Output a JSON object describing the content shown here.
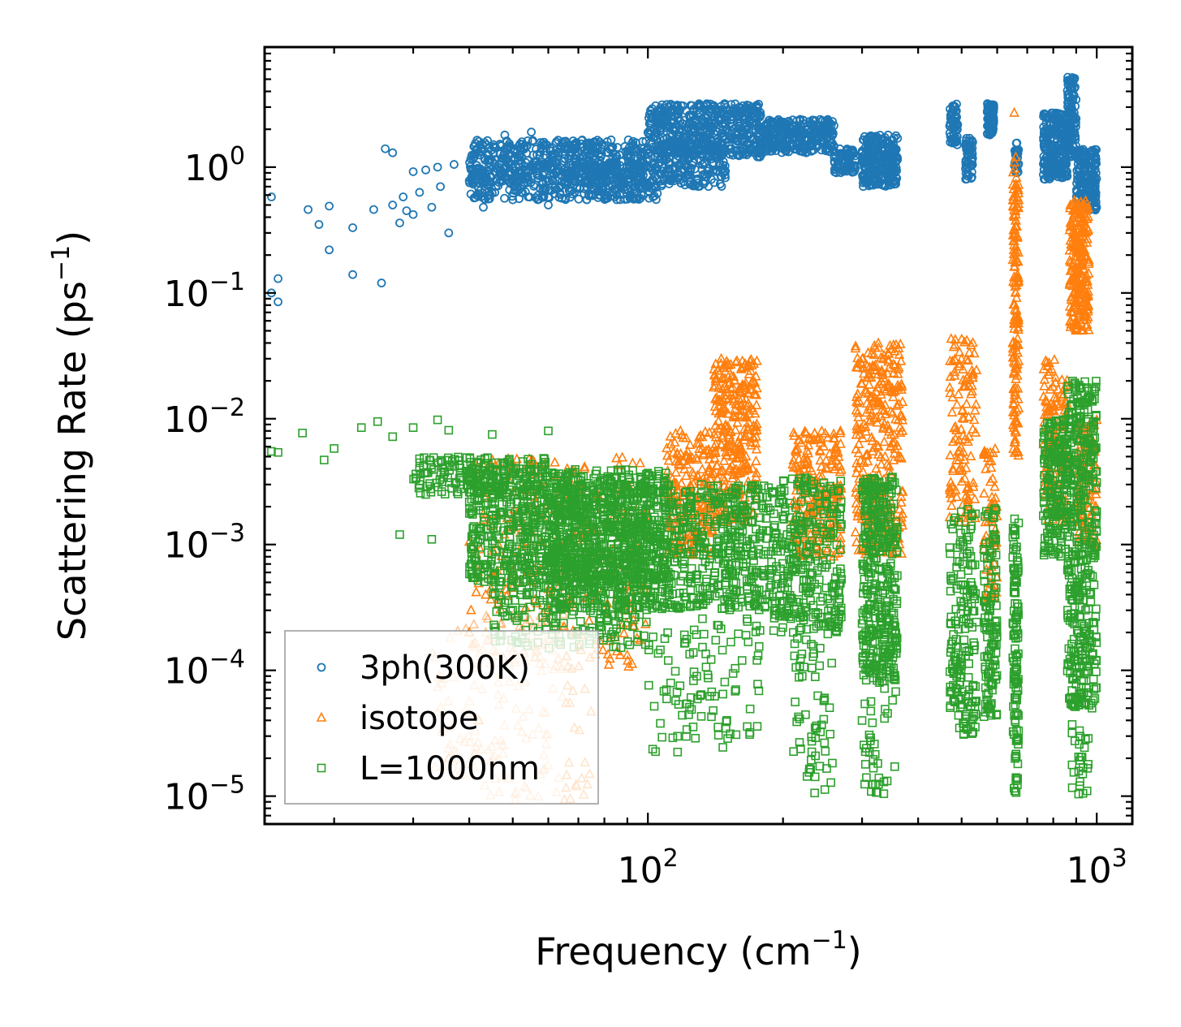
{
  "chart_data": {
    "type": "scatter",
    "title": "",
    "xlabel": "Frequency",
    "xlabel_unit_base": "cm",
    "xlabel_unit_exp": "−1",
    "ylabel": "Scattering Rate",
    "ylabel_unit_base": "ps",
    "ylabel_unit_exp": "−1",
    "xscale": "log",
    "yscale": "log",
    "xlim": [
      14.0,
      1200.0
    ],
    "ylim": [
      6e-06,
      9.0
    ],
    "x_ticks": [
      {
        "value": 100,
        "base": "10",
        "exp": "2"
      },
      {
        "value": 1000,
        "base": "10",
        "exp": "3"
      }
    ],
    "y_ticks": [
      {
        "value": 1,
        "base": "10",
        "exp": "0"
      },
      {
        "value": 0.1,
        "base": "10",
        "exp": "−1"
      },
      {
        "value": 0.01,
        "base": "10",
        "exp": "−2"
      },
      {
        "value": 0.001,
        "base": "10",
        "exp": "−3"
      },
      {
        "value": 0.0001,
        "base": "10",
        "exp": "−4"
      },
      {
        "value": 1e-05,
        "base": "10",
        "exp": "−5"
      }
    ],
    "legend_position": "lower-left",
    "series": [
      {
        "name": "3ph(300K)",
        "marker": "circle",
        "color": "#1f77b4",
        "points": [
          [
            14.5,
            0.58
          ],
          [
            14.5,
            0.1
          ],
          [
            15,
            0.085
          ],
          [
            15,
            0.13
          ],
          [
            17.5,
            0.46
          ],
          [
            18.5,
            0.35
          ],
          [
            19.5,
            0.49
          ],
          [
            19.5,
            0.22
          ],
          [
            22,
            0.33
          ],
          [
            22,
            0.14
          ],
          [
            24.5,
            0.46
          ],
          [
            25.5,
            0.12
          ],
          [
            26,
            1.4
          ],
          [
            27,
            1.3
          ],
          [
            27,
            0.5
          ],
          [
            28,
            0.36
          ],
          [
            28.5,
            0.58
          ],
          [
            29,
            0.45
          ],
          [
            30,
            0.92
          ],
          [
            30,
            0.42
          ],
          [
            31,
            0.63
          ],
          [
            32,
            0.95
          ],
          [
            33,
            0.48
          ],
          [
            34,
            1.0
          ],
          [
            34.5,
            0.7
          ],
          [
            36,
            0.3
          ],
          [
            37,
            1.05
          ],
          [
            40,
            0.78
          ],
          [
            42,
            1.6
          ],
          [
            43,
            0.48
          ],
          [
            45,
            0.62
          ],
          [
            48,
            1.8
          ],
          [
            50,
            0.55
          ],
          [
            55,
            1.9
          ],
          [
            60,
            0.5
          ],
          [
            65,
            1.6
          ]
        ],
        "bands": [
          [
            40,
            100,
            0.75,
            1.65,
            520
          ],
          [
            40,
            70,
            0.55,
            1.0,
            160
          ],
          [
            70,
            105,
            0.55,
            1.1,
            220
          ],
          [
            100,
            180,
            1.2,
            3.2,
            520
          ],
          [
            105,
            150,
            0.7,
            1.6,
            200
          ],
          [
            180,
            260,
            1.3,
            2.4,
            300
          ],
          [
            260,
            290,
            0.9,
            1.4,
            80
          ],
          [
            300,
            360,
            0.7,
            1.8,
            260
          ],
          [
            470,
            490,
            1.5,
            3.2,
            60
          ],
          [
            510,
            530,
            0.8,
            1.7,
            60
          ],
          [
            570,
            590,
            1.8,
            3.2,
            80
          ],
          [
            655,
            670,
            0.9,
            1.6,
            30
          ],
          [
            760,
            860,
            0.8,
            2.7,
            240
          ],
          [
            860,
            900,
            1.2,
            5.2,
            120
          ],
          [
            900,
            1000,
            0.45,
            1.4,
            200
          ]
        ]
      },
      {
        "name": "isotope",
        "marker": "triangle",
        "color": "#ff7f0e",
        "points": [
          [
            655,
            2.7
          ],
          [
            660,
            1.2
          ],
          [
            40,
            0.0002
          ],
          [
            36,
            2e-05
          ],
          [
            42,
            4e-05
          ],
          [
            60,
            0.0003
          ]
        ],
        "bands": [
          [
            40,
            100,
            0.0001,
            0.005,
            300
          ],
          [
            33,
            75,
            9e-06,
            0.00025,
            150
          ],
          [
            110,
            140,
            0.0008,
            0.008,
            200
          ],
          [
            140,
            175,
            0.0015,
            0.03,
            300
          ],
          [
            210,
            270,
            0.0008,
            0.008,
            220
          ],
          [
            290,
            370,
            0.0008,
            0.04,
            320
          ],
          [
            470,
            540,
            0.0015,
            0.045,
            120
          ],
          [
            560,
            600,
            0.0003,
            0.007,
            60
          ],
          [
            650,
            670,
            0.005,
            1.2,
            160
          ],
          [
            760,
            860,
            0.0015,
            0.03,
            150
          ],
          [
            870,
            960,
            0.05,
            0.55,
            260
          ],
          [
            900,
            1000,
            0.001,
            0.01,
            120
          ]
        ]
      },
      {
        "name": "L=1000nm",
        "marker": "square",
        "color": "#2ca02c",
        "points": [
          [
            14.5,
            0.0055
          ],
          [
            15,
            0.0054
          ],
          [
            17,
            0.0077
          ],
          [
            19,
            0.0047
          ],
          [
            20,
            0.0058
          ],
          [
            23,
            0.0085
          ],
          [
            25,
            0.0095
          ],
          [
            27,
            0.0072
          ],
          [
            30,
            0.0085
          ],
          [
            34,
            0.0098
          ],
          [
            36,
            0.0081
          ],
          [
            28,
            0.0012
          ],
          [
            33,
            0.0011
          ],
          [
            31,
            0.003
          ],
          [
            32,
            0.0025
          ],
          [
            45,
            0.0075
          ],
          [
            60,
            0.008
          ]
        ],
        "bands": [
          [
            30,
            60,
            0.0025,
            0.005,
            180
          ],
          [
            40,
            110,
            0.0005,
            0.004,
            900
          ],
          [
            60,
            190,
            0.0003,
            0.003,
            900
          ],
          [
            45,
            100,
            0.00015,
            0.0008,
            250
          ],
          [
            100,
            180,
            2e-05,
            0.0004,
            120
          ],
          [
            190,
            270,
            0.0002,
            0.0035,
            300
          ],
          [
            210,
            260,
            1e-05,
            0.0002,
            60
          ],
          [
            300,
            360,
            8e-05,
            0.0035,
            380
          ],
          [
            300,
            360,
            1e-05,
            0.0001,
            40
          ],
          [
            470,
            540,
            3e-05,
            0.002,
            180
          ],
          [
            560,
            600,
            4e-05,
            0.002,
            120
          ],
          [
            650,
            670,
            1e-05,
            0.0016,
            120
          ],
          [
            760,
            860,
            0.0008,
            0.01,
            200
          ],
          [
            860,
            1000,
            5e-05,
            0.02,
            420
          ],
          [
            880,
            960,
            1e-05,
            0.0001,
            40
          ]
        ]
      }
    ]
  }
}
